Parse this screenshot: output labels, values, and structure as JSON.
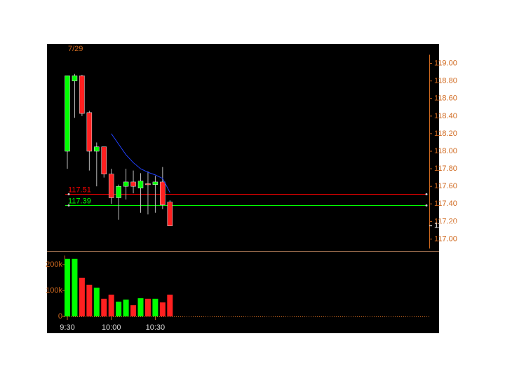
{
  "chart_data": [
    {
      "type": "candlestick",
      "title": "7/29",
      "open": [
        118.0,
        118.8,
        118.86,
        118.44,
        118.0,
        118.05,
        117.74,
        117.47,
        117.6,
        117.65,
        117.58,
        117.63,
        117.62,
        117.65,
        117.42
      ],
      "high": [
        118.86,
        118.88,
        118.87,
        118.46,
        118.1,
        118.05,
        117.8,
        117.62,
        117.8,
        117.78,
        117.75,
        117.77,
        117.72,
        117.82,
        117.44
      ],
      "low": [
        117.8,
        118.38,
        118.4,
        117.78,
        117.6,
        117.7,
        117.4,
        117.22,
        117.45,
        117.52,
        117.3,
        117.28,
        117.3,
        117.34,
        117.15
      ],
      "close": [
        118.86,
        118.86,
        118.43,
        118.0,
        118.05,
        117.74,
        117.47,
        117.6,
        117.65,
        117.6,
        117.66,
        117.62,
        117.65,
        117.39,
        117.15
      ],
      "up_color": "#00ff00",
      "down_color": "#ff2020",
      "overlay": {
        "color": "#2040ff",
        "values": [
          null,
          null,
          null,
          null,
          null,
          null,
          118.2,
          118.08,
          117.96,
          117.87,
          117.8,
          117.76,
          117.73,
          117.69,
          117.53
        ]
      },
      "levels": [
        {
          "value": 117.51,
          "color": "#ff0000"
        },
        {
          "value": 117.39,
          "color": "#00ff00"
        }
      ],
      "ylim": [
        116.86,
        119.22
      ],
      "yticks": [
        {
          "value": 117,
          "label": "117.00"
        },
        {
          "value": 117.2,
          "label": "117.20"
        },
        {
          "value": 117.4,
          "label": "117.40"
        },
        {
          "value": 117.6,
          "label": "117.60"
        },
        {
          "value": 117.8,
          "label": "117.80"
        },
        {
          "value": 118,
          "label": "118.00"
        },
        {
          "value": 118.2,
          "label": "118.20"
        },
        {
          "value": 118.4,
          "label": "118.40"
        },
        {
          "value": 118.6,
          "label": "118.60"
        },
        {
          "value": 118.8,
          "label": "118.80"
        },
        {
          "value": 119,
          "label": "119.00"
        }
      ]
    },
    {
      "type": "bar",
      "categories": [
        "9:30",
        null,
        null,
        null,
        null,
        null,
        "10:00",
        null,
        null,
        null,
        null,
        null,
        "10:30",
        null,
        null
      ],
      "values": [
        222000,
        222000,
        149000,
        122000,
        111000,
        68000,
        84000,
        57000,
        65000,
        43000,
        70000,
        68000,
        68000,
        54000,
        84000
      ],
      "ylim": [
        0,
        243000
      ],
      "yticks": [
        0,
        {
          "value": 100000,
          "label": "100k"
        },
        {
          "value": 200000,
          "label": "200k"
        }
      ]
    }
  ]
}
